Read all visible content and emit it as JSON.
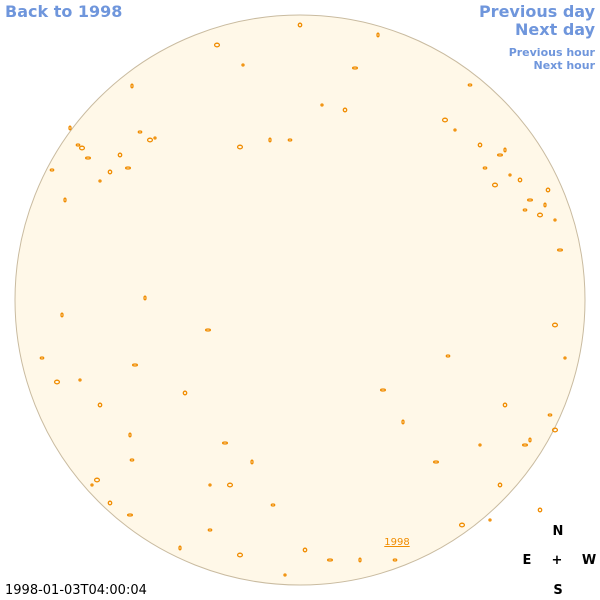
{
  "nav": {
    "back": "Back to 1998",
    "previous_day": "Previous day",
    "next_day": "Next day",
    "previous_hour": "Previous hour",
    "next_hour": "Next hour"
  },
  "disk_label": "1998",
  "compass": {
    "north": "N",
    "east": "E",
    "center": "+",
    "west": "W",
    "south": "S"
  },
  "timestamp": "1998-01-03T04:00:04"
}
